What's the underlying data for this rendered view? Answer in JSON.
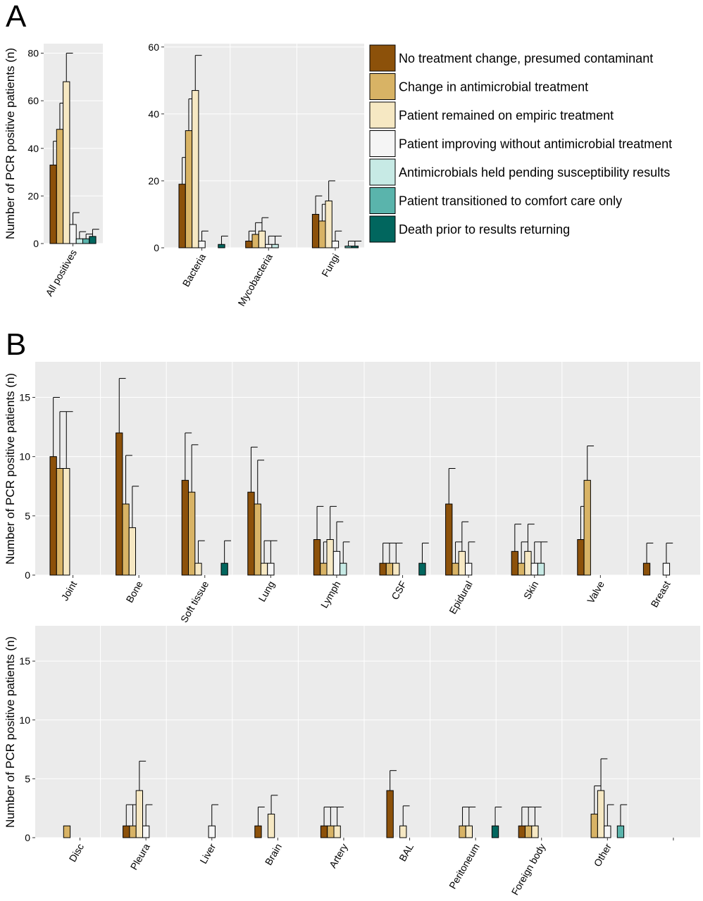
{
  "panel_letters": [
    "A",
    "B"
  ],
  "legend": {
    "items": [
      {
        "label": "No treatment change, presumed contaminant",
        "color": "#8c510a"
      },
      {
        "label": "Change in antimicrobial treatment",
        "color": "#d8b365"
      },
      {
        "label": "Patient remained on empiric treatment",
        "color": "#f6e8c3"
      },
      {
        "label": "Patient improving without antimicrobial treatment",
        "color": "#f5f5f5"
      },
      {
        "label": "Antimicrobials held pending susceptibility results",
        "color": "#c7eae5"
      },
      {
        "label": "Patient transitioned to comfort care only",
        "color": "#5ab4ac"
      },
      {
        "label": "Death prior to results returning",
        "color": "#01665e"
      }
    ]
  },
  "chart_data": [
    {
      "type": "bar",
      "panel": "A",
      "ylabel": "Number of PCR positive patients (n)",
      "ylim": [
        0,
        84
      ],
      "yticks": [
        0,
        20,
        40,
        60,
        80
      ],
      "categories": [
        "All positives"
      ],
      "series": [
        {
          "name": "No treatment change, presumed contaminant",
          "values": [
            33
          ],
          "upper": [
            43
          ]
        },
        {
          "name": "Change in antimicrobial treatment",
          "values": [
            48
          ],
          "upper": [
            59
          ]
        },
        {
          "name": "Patient remained on empiric treatment",
          "values": [
            68
          ],
          "upper": [
            80
          ]
        },
        {
          "name": "Patient improving without antimicrobial treatment",
          "values": [
            8
          ],
          "upper": [
            13
          ]
        },
        {
          "name": "Antimicrobials held pending susceptibility results",
          "values": [
            2
          ],
          "upper": [
            5
          ]
        },
        {
          "name": "Patient transitioned to comfort care only",
          "values": [
            2
          ],
          "upper": [
            4
          ]
        },
        {
          "name": "Death prior to results returning",
          "values": [
            3
          ],
          "upper": [
            6
          ]
        }
      ]
    },
    {
      "type": "bar",
      "panel": "A",
      "ylabel": "",
      "ylim": [
        0,
        61
      ],
      "yticks": [
        0,
        20,
        40,
        60
      ],
      "categories": [
        "Bacteria",
        "Mycobacteria",
        "Fungi"
      ],
      "series": [
        {
          "name": "No treatment change, presumed contaminant",
          "values": [
            19,
            2,
            10
          ],
          "upper": [
            27,
            5,
            15.5
          ]
        },
        {
          "name": "Change in antimicrobial treatment",
          "values": [
            35,
            4,
            8
          ],
          "upper": [
            44.5,
            7.5,
            13
          ]
        },
        {
          "name": "Patient remained on empiric treatment",
          "values": [
            47,
            5,
            14
          ],
          "upper": [
            57.5,
            9,
            20
          ]
        },
        {
          "name": "Patient improving without antimicrobial treatment",
          "values": [
            2,
            1,
            2
          ],
          "upper": [
            5,
            3.5,
            5
          ]
        },
        {
          "name": "Antimicrobials held pending susceptibility results",
          "values": [
            0,
            1,
            0
          ],
          "upper": [
            null,
            3.5,
            null
          ]
        },
        {
          "name": "Patient transitioned to comfort care only",
          "values": [
            0,
            0,
            0.5
          ],
          "upper": [
            null,
            null,
            2
          ]
        },
        {
          "name": "Death prior to results returning",
          "values": [
            1,
            0,
            0.5
          ],
          "upper": [
            3.5,
            null,
            2
          ]
        }
      ]
    },
    {
      "type": "bar",
      "panel": "B",
      "ylabel": "Number of PCR positive patients (n)",
      "ylim": [
        0,
        18
      ],
      "yticks": [
        0,
        5,
        10,
        15
      ],
      "categories": [
        "Joint",
        "Bone",
        "Soft tissue",
        "Lung",
        "Lymph",
        "CSF",
        "Epidural",
        "Skin",
        "Valve",
        "Breast"
      ],
      "series": [
        {
          "name": "No treatment change, presumed contaminant",
          "values": [
            10,
            12,
            8,
            7,
            3,
            1,
            6,
            2,
            3,
            1
          ],
          "upper": [
            15,
            16.6,
            12,
            10.8,
            5.8,
            2.7,
            9,
            4.3,
            5.8,
            2.7
          ]
        },
        {
          "name": "Change in antimicrobial treatment",
          "values": [
            9,
            6,
            7,
            6,
            1,
            1,
            1,
            1,
            8,
            0
          ],
          "upper": [
            13.8,
            10.1,
            11,
            9.7,
            2.8,
            2.7,
            2.8,
            2.8,
            10.9,
            null
          ]
        },
        {
          "name": "Patient remained on empiric treatment",
          "values": [
            9,
            4,
            1,
            1,
            3,
            1,
            2,
            2,
            0,
            0
          ],
          "upper": [
            13.8,
            7.5,
            2.9,
            2.9,
            5.8,
            2.7,
            4.5,
            4.3,
            null,
            null
          ]
        },
        {
          "name": "Patient improving without antimicrobial treatment",
          "values": [
            0,
            0,
            0,
            1,
            2,
            0,
            1,
            1,
            0,
            1
          ],
          "upper": [
            null,
            null,
            null,
            2.9,
            4.5,
            null,
            2.8,
            2.8,
            null,
            2.7
          ]
        },
        {
          "name": "Antimicrobials held pending susceptibility results",
          "values": [
            0,
            0,
            0,
            0,
            1,
            0,
            0,
            1,
            0,
            0
          ],
          "upper": [
            null,
            null,
            null,
            null,
            2.8,
            null,
            null,
            2.8,
            null,
            null
          ]
        },
        {
          "name": "Patient transitioned to comfort care only",
          "values": [
            0,
            0,
            0,
            0,
            0,
            0,
            0,
            0,
            0,
            0
          ],
          "upper": [
            null,
            null,
            null,
            null,
            null,
            null,
            null,
            null,
            null,
            null
          ]
        },
        {
          "name": "Death prior to results returning",
          "values": [
            0,
            0,
            1,
            0,
            0,
            1,
            0,
            0,
            0,
            0
          ],
          "upper": [
            null,
            null,
            2.9,
            null,
            null,
            2.7,
            null,
            null,
            null,
            null
          ]
        }
      ]
    },
    {
      "type": "bar",
      "panel": "B",
      "ylabel": "Number of PCR positive patients (n)",
      "ylim": [
        0,
        18
      ],
      "yticks": [
        0,
        5,
        10,
        15
      ],
      "categories": [
        "Disc",
        "Pleura",
        "Liver",
        "Brain",
        "Artery",
        "BAL",
        "Peritoneum",
        "Foreign body",
        "Other",
        ""
      ],
      "series": [
        {
          "name": "No treatment change, presumed contaminant",
          "values": [
            0,
            1,
            0,
            1,
            1,
            4,
            0,
            1,
            0,
            0
          ],
          "upper": [
            null,
            2.8,
            null,
            2.6,
            2.6,
            5.7,
            null,
            2.6,
            null,
            null
          ]
        },
        {
          "name": "Change in antimicrobial treatment",
          "values": [
            1,
            1,
            0,
            0,
            1,
            0,
            1,
            1,
            2,
            0
          ],
          "upper": [
            null,
            2.8,
            null,
            null,
            2.6,
            null,
            2.6,
            2.6,
            4.4,
            null
          ]
        },
        {
          "name": "Patient remained on empiric treatment",
          "values": [
            0,
            4,
            0,
            2,
            1,
            1,
            1,
            1,
            4,
            0
          ],
          "upper": [
            null,
            6.5,
            null,
            3.6,
            2.6,
            2.7,
            2.6,
            2.6,
            6.7,
            null
          ]
        },
        {
          "name": "Patient improving without antimicrobial treatment",
          "values": [
            0,
            1,
            1,
            0,
            0,
            0,
            0,
            0,
            1,
            0
          ],
          "upper": [
            null,
            2.8,
            2.8,
            null,
            null,
            null,
            null,
            null,
            2.8,
            null
          ]
        },
        {
          "name": "Antimicrobials held pending susceptibility results",
          "values": [
            0,
            0,
            0,
            0,
            0,
            0,
            0,
            0,
            0,
            0
          ],
          "upper": [
            null,
            null,
            null,
            null,
            null,
            null,
            null,
            null,
            null,
            null
          ]
        },
        {
          "name": "Patient transitioned to comfort care only",
          "values": [
            0,
            0,
            0,
            0,
            0,
            0,
            0,
            0,
            1,
            0
          ],
          "upper": [
            null,
            null,
            null,
            null,
            null,
            null,
            null,
            null,
            2.8,
            null
          ]
        },
        {
          "name": "Death prior to results returning",
          "values": [
            0,
            0,
            0,
            0,
            0,
            0,
            1,
            0,
            0,
            0
          ],
          "upper": [
            null,
            null,
            null,
            null,
            null,
            null,
            2.6,
            null,
            null,
            null
          ]
        }
      ]
    }
  ]
}
